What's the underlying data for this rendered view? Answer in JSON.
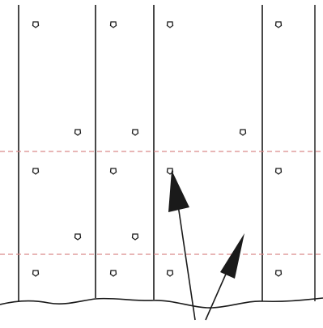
{
  "diagram": {
    "colors": {
      "background": "#ffffff",
      "line": "#1a1a1a",
      "dashed_line": "#d98a8a",
      "marker_fill": "#ffffff"
    },
    "columns": 5,
    "dashed_rows": 2,
    "markers": [
      {
        "column": 1,
        "row": "top"
      },
      {
        "column": 2,
        "row": "top"
      },
      {
        "column": 3,
        "row": "top"
      },
      {
        "column": 5,
        "row": "top"
      },
      {
        "column": 1,
        "row": "upper-mid"
      },
      {
        "column": 2,
        "row": "upper-mid"
      },
      {
        "column": 4,
        "row": "upper-mid"
      },
      {
        "column": 1,
        "row": "dashed-1"
      },
      {
        "column": 2,
        "row": "dashed-1"
      },
      {
        "column": 3,
        "row": "dashed-1"
      },
      {
        "column": 5,
        "row": "dashed-1"
      },
      {
        "column": 1,
        "row": "lower-mid"
      },
      {
        "column": 2,
        "row": "lower-mid"
      },
      {
        "column": 1,
        "row": "bottom"
      },
      {
        "column": 2,
        "row": "bottom"
      },
      {
        "column": 3,
        "row": "bottom"
      },
      {
        "column": 5,
        "row": "bottom"
      }
    ],
    "arrows": 2
  }
}
